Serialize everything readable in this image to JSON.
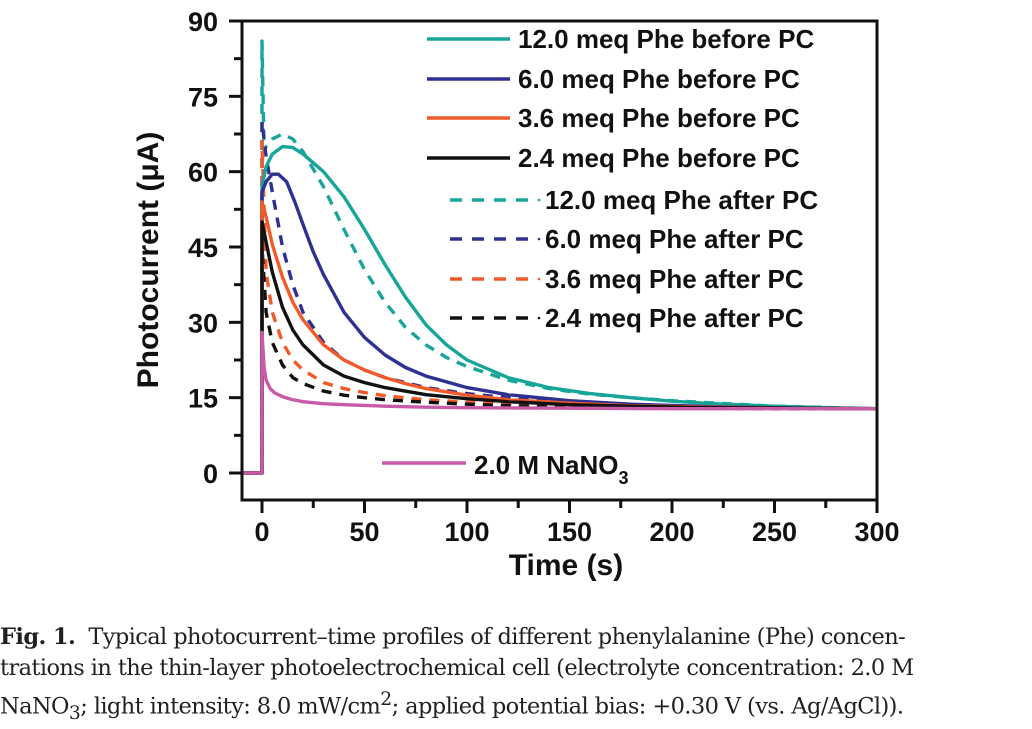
{
  "chart_data": {
    "type": "line",
    "title": "",
    "xlabel": "Time (s)",
    "ylabel": "Photocurrent (μA)",
    "xlim": [
      -10,
      300
    ],
    "ylim": [
      -5,
      90
    ],
    "xticks": [
      0,
      50,
      100,
      150,
      200,
      250,
      300
    ],
    "yticks": [
      0,
      15,
      30,
      45,
      60,
      75,
      90
    ],
    "grid": false,
    "legend_placement": "top-right",
    "series": [
      {
        "name": "12.0 meq Phe before PC",
        "color": "#17a59a",
        "dash": "solid",
        "x": [
          -10,
          0,
          0,
          2,
          5,
          10,
          15,
          20,
          30,
          40,
          50,
          60,
          70,
          80,
          90,
          100,
          120,
          140,
          160,
          180,
          200,
          220,
          250,
          275,
          300
        ],
        "y": [
          0,
          0,
          57,
          61,
          63.5,
          65,
          64.8,
          63.5,
          60,
          55,
          48.5,
          41.5,
          35,
          29.5,
          25.5,
          22.5,
          19,
          17,
          15.8,
          15,
          14.3,
          13.8,
          13.3,
          13,
          12.8
        ]
      },
      {
        "name": "6.0 meq Phe before PC",
        "color": "#2e3192",
        "dash": "solid",
        "x": [
          -10,
          0,
          0,
          2,
          5,
          8,
          12,
          16,
          20,
          25,
          30,
          40,
          50,
          60,
          70,
          80,
          100,
          120,
          150,
          180,
          220,
          260,
          300
        ],
        "y": [
          0,
          0,
          56,
          58,
          59.5,
          59.5,
          58,
          54,
          49.5,
          44,
          39.5,
          32,
          27,
          23.5,
          21,
          19.3,
          17,
          15.6,
          14.4,
          13.7,
          13.2,
          12.9,
          12.8
        ]
      },
      {
        "name": "3.6 meq Phe before PC",
        "color": "#f15a29",
        "dash": "solid",
        "x": [
          -10,
          0,
          0,
          2,
          5,
          10,
          15,
          20,
          30,
          40,
          50,
          60,
          70,
          80,
          100,
          120,
          150,
          180,
          220,
          260,
          300
        ],
        "y": [
          0,
          0,
          54,
          51,
          45.5,
          39,
          34,
          30.5,
          25.5,
          22.5,
          20.5,
          19,
          17.8,
          16.8,
          15.5,
          14.6,
          13.9,
          13.4,
          13.1,
          12.9,
          12.8
        ]
      },
      {
        "name": "2.4 meq Phe before PC",
        "color": "#111111",
        "dash": "solid",
        "x": [
          -10,
          0,
          0,
          2,
          5,
          10,
          15,
          20,
          30,
          40,
          50,
          60,
          80,
          100,
          120,
          150,
          180,
          220,
          260,
          300
        ],
        "y": [
          0,
          0,
          50,
          46,
          40,
          33,
          28.5,
          25.5,
          21.5,
          19.3,
          18,
          17,
          15.6,
          14.8,
          14.2,
          13.6,
          13.3,
          13,
          12.9,
          12.8
        ]
      },
      {
        "name": "12.0 meq Phe after PC",
        "color": "#17a59a",
        "dash": "dashed",
        "x": [
          -10,
          0,
          0,
          1,
          2,
          5,
          10,
          15,
          20,
          30,
          40,
          50,
          60,
          70,
          80,
          90,
          100,
          120,
          140,
          160,
          180,
          200,
          250,
          300
        ],
        "y": [
          0,
          0,
          86,
          64,
          65,
          66.5,
          67.5,
          66.5,
          64,
          57,
          48.5,
          40.5,
          34,
          29,
          25.5,
          23,
          21.2,
          18.5,
          16.8,
          15.7,
          15,
          14.4,
          13.3,
          12.8
        ]
      },
      {
        "name": "6.0 meq Phe after PC",
        "color": "#2e3192",
        "dash": "dashed",
        "x": [
          -10,
          0,
          0,
          2,
          5,
          10,
          15,
          20,
          30,
          40,
          50,
          60,
          80,
          100,
          120,
          150,
          180,
          220,
          260,
          300
        ],
        "y": [
          0,
          0,
          70,
          63,
          56,
          45,
          37.5,
          32,
          26,
          22.5,
          20.5,
          19,
          17,
          15.8,
          15,
          14.2,
          13.6,
          13.1,
          12.9,
          12.8
        ]
      },
      {
        "name": "3.6 meq Phe after PC",
        "color": "#f15a29",
        "dash": "dashed",
        "x": [
          -10,
          0,
          0,
          2,
          5,
          10,
          15,
          20,
          30,
          40,
          50,
          60,
          80,
          100,
          120,
          150,
          200,
          250,
          300
        ],
        "y": [
          0,
          0,
          66,
          40,
          32,
          26,
          22.5,
          20.5,
          18,
          16.8,
          16,
          15.4,
          14.6,
          14.1,
          13.7,
          13.3,
          13,
          12.9,
          12.8
        ]
      },
      {
        "name": "2.4 meq Phe after PC",
        "color": "#111111",
        "dash": "dashed",
        "x": [
          -10,
          0,
          0,
          2,
          5,
          10,
          15,
          20,
          30,
          40,
          50,
          60,
          80,
          100,
          120,
          150,
          200,
          250,
          300
        ],
        "y": [
          0,
          0,
          45,
          32,
          26,
          21.5,
          19,
          17.8,
          16.3,
          15.5,
          15,
          14.6,
          14.1,
          13.7,
          13.4,
          13.1,
          12.9,
          12.8,
          12.8
        ]
      },
      {
        "name": "2.0 M NaNO₃",
        "color": "#c85aa8",
        "dash": "solid",
        "x": [
          -10,
          0,
          0,
          1,
          2,
          4,
          6,
          10,
          15,
          20,
          30,
          40,
          60,
          80,
          100,
          150,
          200,
          250,
          300
        ],
        "y": [
          0,
          0,
          28,
          21,
          18.5,
          16.8,
          16,
          15.2,
          14.6,
          14.2,
          13.8,
          13.6,
          13.3,
          13.1,
          13,
          12.9,
          12.8,
          12.8,
          12.8
        ]
      }
    ],
    "legend_upper": [
      0,
      1,
      2,
      3,
      4,
      5,
      6,
      7
    ],
    "legend_lower": [
      8
    ]
  },
  "legend": {
    "labels": [
      "12.0 meq Phe before PC",
      "6.0 meq Phe before PC",
      "3.6 meq Phe before PC",
      "2.4 meq Phe before PC",
      "12.0 meq Phe after PC",
      "6.0 meq Phe after PC",
      "3.6 meq Phe after PC",
      "2.4 meq Phe after PC"
    ],
    "nano3_main": "2.0 M NaNO",
    "nano3_sub": "3"
  },
  "caption": {
    "fig_label": "Fig. 1.",
    "line1": "Typical photocurrent–time profiles of different phenylalanine (Phe) concen-",
    "line2": "trations in the thin-layer photoelectrochemical cell (electrolyte concentration: 2.0 M",
    "line3_a": "NaNO",
    "line3_sub": "3",
    "line3_b": "; light intensity: 8.0 mW/cm",
    "line3_sup": "2",
    "line3_c": "; applied potential bias: +0.30 V (vs. Ag/AgCl))."
  }
}
